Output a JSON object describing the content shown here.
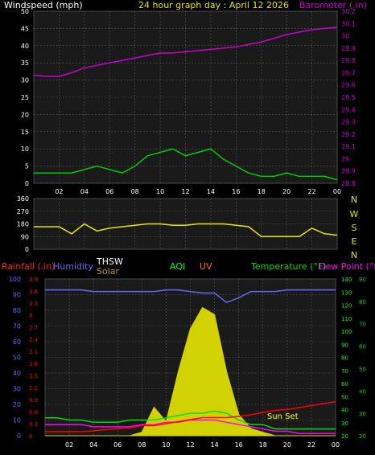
{
  "header": {
    "windspeed_label": "Windspeed (mph)",
    "title": "24 hour graph day : April 12 2026",
    "barometer_label": "Barometer (.in)"
  },
  "colors": {
    "background": "#000000",
    "panel": "#1a1a1a",
    "grid": "#5a5a5a",
    "wind_gust": "#ffffff",
    "wind_avg": "#00cc00",
    "barometer": "#cc00cc",
    "wind_dir": "#e6e600",
    "humidity": "#6666ff",
    "thsw": "#ffffff",
    "solar": "#e6e600",
    "rainfall": "#ff0000",
    "aqi": "#00ff00",
    "uv": "#ff6600",
    "temperature": "#00dd00",
    "dew_point": "#ff00ff",
    "sunset": "#ffff00"
  },
  "x_ticks": [
    "02",
    "04",
    "06",
    "08",
    "10",
    "12",
    "14",
    "16",
    "18",
    "20",
    "22",
    "00"
  ],
  "wind_panel": {
    "left_ticks": [
      "50",
      "45",
      "40",
      "35",
      "30",
      "25",
      "20",
      "15",
      "10",
      "5",
      "0"
    ],
    "right_ticks": [
      "30.2",
      "30.1",
      "30",
      "29.9",
      "29.8",
      "29.7",
      "29.6",
      "29.5",
      "29.4",
      "29.3",
      "29.2",
      "29.1",
      "29",
      "28.9",
      "28.8"
    ]
  },
  "dir_panel": {
    "left_ticks": [
      "360",
      "270",
      "180",
      "90",
      "0"
    ],
    "right_ticks": [
      "N",
      "W",
      "S",
      "E",
      "N"
    ]
  },
  "bottom_panel": {
    "legend": {
      "rainfall": "Rainfall (.in)",
      "humidity": "Humidity",
      "thsw": "THSW",
      "solar": "Solar",
      "aqi": "AQI",
      "uv": "UV",
      "temperature": "Temperature (°F)",
      "dew_point": "Dew Point (°F)"
    },
    "rain_ticks": [
      "3.9",
      "3.6",
      "3.3",
      "3",
      "2.7",
      "2.4",
      "2.1",
      "1.8",
      "1.5",
      "1.2",
      "0.9",
      "0.6",
      "0.3",
      "0"
    ],
    "humidity_ticks": [
      "100",
      "90",
      "80",
      "70",
      "60",
      "50",
      "40",
      "30",
      "20",
      "10",
      "0"
    ],
    "aqi_ticks": [
      "140",
      "130",
      "120",
      "110",
      "100",
      "90",
      "80",
      "70",
      "60",
      "50",
      "40",
      "30",
      "20"
    ],
    "temp_ticks": [
      "90",
      "80",
      "70",
      "60",
      "50",
      "40",
      "30",
      "20"
    ],
    "sunset_label": "Sun Set"
  },
  "chart_data": {
    "type": "line",
    "x": [
      0,
      1,
      2,
      3,
      4,
      5,
      6,
      7,
      8,
      9,
      10,
      11,
      12,
      13,
      14,
      15,
      16,
      17,
      18,
      19,
      20,
      21,
      22,
      23,
      24
    ],
    "x_tick_labels": [
      "02",
      "04",
      "06",
      "08",
      "10",
      "12",
      "14",
      "16",
      "18",
      "20",
      "22",
      "00"
    ],
    "series": [
      {
        "name": "Windspeed (mph)",
        "values": [
          3,
          3,
          3,
          3,
          4,
          5,
          4,
          3,
          5,
          8,
          9,
          10,
          8,
          9,
          10,
          7,
          5,
          3,
          2,
          2,
          3,
          2,
          2,
          2,
          1
        ]
      },
      {
        "name": "Barometer (.in)",
        "values": [
          29.68,
          29.67,
          29.67,
          29.7,
          29.74,
          29.76,
          29.78,
          29.8,
          29.82,
          29.84,
          29.86,
          29.86,
          29.87,
          29.88,
          29.89,
          29.9,
          29.91,
          29.93,
          29.95,
          29.98,
          30.01,
          30.03,
          30.05,
          30.06,
          30.07
        ]
      },
      {
        "name": "Wind Direction",
        "values": [
          160,
          160,
          160,
          110,
          180,
          130,
          150,
          160,
          170,
          180,
          180,
          170,
          170,
          180,
          180,
          180,
          170,
          160,
          90,
          90,
          90,
          90,
          150,
          110,
          100
        ]
      },
      {
        "name": "Humidity",
        "values": [
          93,
          93,
          93,
          93,
          92,
          92,
          92,
          92,
          92,
          92,
          93,
          93,
          92,
          91,
          91,
          85,
          88,
          92,
          92,
          92,
          93,
          93,
          93,
          93,
          93
        ]
      },
      {
        "name": "Temperature (°F)",
        "values": [
          28,
          28,
          27,
          27,
          26,
          26,
          26,
          27,
          27,
          27,
          28,
          29,
          30,
          30,
          31,
          30,
          27,
          25,
          25,
          23,
          23,
          23,
          23,
          23,
          23
        ]
      },
      {
        "name": "Dew Point (°F)",
        "values": [
          25,
          25,
          25,
          25,
          24,
          24,
          24,
          24,
          25,
          25,
          26,
          26,
          27,
          27,
          27,
          26,
          25,
          24,
          23,
          22,
          22,
          21,
          21,
          21,
          21
        ]
      },
      {
        "name": "Rainfall (.in)",
        "values": [
          0.1,
          0.1,
          0.1,
          0.1,
          0.12,
          0.15,
          0.17,
          0.2,
          0.25,
          0.25,
          0.3,
          0.35,
          0.4,
          0.45,
          0.45,
          0.45,
          0.48,
          0.52,
          0.58,
          0.63,
          0.65,
          0.7,
          0.75,
          0.8,
          0.85
        ]
      },
      {
        "name": "Solar",
        "values": [
          0,
          0,
          0,
          0,
          0,
          0,
          0,
          0,
          5,
          40,
          20,
          90,
          150,
          180,
          170,
          90,
          30,
          10,
          5,
          0,
          0,
          0,
          0,
          0,
          0
        ]
      }
    ],
    "wind_ylim": [
      0,
      50
    ],
    "barometer_ylim": [
      28.8,
      30.2
    ],
    "direction_ylim": [
      0,
      360
    ],
    "humidity_ylim": [
      0,
      100
    ],
    "rain_ylim": [
      0,
      3.9
    ],
    "aqi_ylim": [
      20,
      140
    ],
    "temperature_ylim": [
      20,
      90
    ]
  }
}
